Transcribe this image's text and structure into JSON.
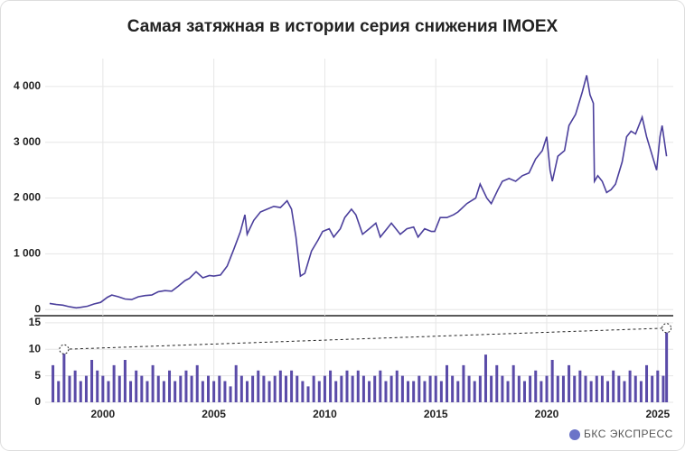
{
  "chart_data": [
    {
      "type": "line",
      "title": "Самая затяжная в истории серия снижения IMOEX",
      "color": "#4b3f9c",
      "grid": true,
      "xlim": [
        1997.4,
        2025.7
      ],
      "xticks": [
        2000,
        2005,
        2010,
        2015,
        2020,
        2025
      ],
      "ylim": [
        -110,
        4500
      ],
      "yticks": [
        0,
        {
          "value": 1000,
          "label": "1 000"
        },
        {
          "value": 2000,
          "label": "2 000"
        },
        {
          "value": 3000,
          "label": "3 000"
        },
        {
          "value": 4000,
          "label": "4 000"
        }
      ],
      "x": [
        1997.6,
        1997.9,
        1998.2,
        1998.5,
        1998.8,
        1999.0,
        1999.3,
        1999.6,
        1999.9,
        2000.2,
        2000.4,
        2000.7,
        2001.0,
        2001.3,
        2001.6,
        2001.9,
        2002.2,
        2002.5,
        2002.8,
        2003.1,
        2003.4,
        2003.7,
        2003.9,
        2004.2,
        2004.5,
        2004.8,
        2005.0,
        2005.3,
        2005.6,
        2005.9,
        2006.2,
        2006.4,
        2006.5,
        2006.8,
        2007.1,
        2007.4,
        2007.7,
        2008.0,
        2008.3,
        2008.5,
        2008.7,
        2008.9,
        2009.1,
        2009.4,
        2009.7,
        2009.9,
        2010.2,
        2010.4,
        2010.7,
        2010.9,
        2011.2,
        2011.4,
        2011.7,
        2012.0,
        2012.3,
        2012.5,
        2012.8,
        2013.0,
        2013.4,
        2013.7,
        2014.0,
        2014.2,
        2014.5,
        2014.8,
        2014.95,
        2015.2,
        2015.5,
        2015.8,
        2016.0,
        2016.4,
        2016.8,
        2017.0,
        2017.3,
        2017.5,
        2017.8,
        2018.0,
        2018.3,
        2018.6,
        2018.9,
        2019.2,
        2019.5,
        2019.8,
        2020.0,
        2020.15,
        2020.25,
        2020.5,
        2020.8,
        2021.0,
        2021.3,
        2021.6,
        2021.8,
        2021.95,
        2022.1,
        2022.15,
        2022.3,
        2022.5,
        2022.7,
        2022.9,
        2023.1,
        2023.4,
        2023.6,
        2023.8,
        2024.0,
        2024.3,
        2024.5,
        2024.8,
        2024.95,
        2025.1,
        2025.2,
        2025.4
      ],
      "values": [
        110,
        90,
        80,
        50,
        30,
        40,
        60,
        100,
        130,
        220,
        260,
        230,
        190,
        180,
        230,
        250,
        260,
        320,
        340,
        330,
        420,
        520,
        560,
        680,
        570,
        610,
        600,
        620,
        780,
        1080,
        1400,
        1700,
        1350,
        1600,
        1750,
        1800,
        1850,
        1830,
        1950,
        1800,
        1300,
        600,
        650,
        1050,
        1250,
        1400,
        1450,
        1300,
        1450,
        1650,
        1800,
        1700,
        1350,
        1450,
        1550,
        1300,
        1450,
        1550,
        1350,
        1450,
        1480,
        1300,
        1450,
        1400,
        1400,
        1650,
        1650,
        1700,
        1750,
        1900,
        2000,
        2250,
        2000,
        1900,
        2150,
        2300,
        2350,
        2300,
        2400,
        2450,
        2700,
        2850,
        3100,
        2500,
        2300,
        2750,
        2850,
        3300,
        3500,
        3900,
        4200,
        3850,
        3700,
        2300,
        2400,
        2300,
        2100,
        2150,
        2250,
        2650,
        3100,
        3200,
        3150,
        3450,
        3100,
        2700,
        2500,
        3100,
        3300,
        2750
      ]
    },
    {
      "type": "bar",
      "color": "#5a4ba8",
      "grid": true,
      "xlim": [
        1997.4,
        2025.7
      ],
      "xticks": [
        2000,
        2005,
        2010,
        2015,
        2020,
        2025
      ],
      "ylim": [
        0,
        16
      ],
      "yticks": [
        0,
        5,
        10,
        15
      ],
      "x": [
        1997.75,
        1998,
        1998.25,
        1998.5,
        1998.75,
        1999,
        1999.25,
        1999.5,
        1999.75,
        2000,
        2000.25,
        2000.5,
        2000.75,
        2001,
        2001.25,
        2001.5,
        2001.75,
        2002,
        2002.25,
        2002.5,
        2002.75,
        2003,
        2003.25,
        2003.5,
        2003.75,
        2004,
        2004.25,
        2004.5,
        2004.75,
        2005,
        2005.25,
        2005.5,
        2005.75,
        2006,
        2006.25,
        2006.5,
        2006.75,
        2007,
        2007.25,
        2007.5,
        2007.75,
        2008,
        2008.25,
        2008.5,
        2008.75,
        2009,
        2009.25,
        2009.5,
        2009.75,
        2010,
        2010.25,
        2010.5,
        2010.75,
        2011,
        2011.25,
        2011.5,
        2011.75,
        2012,
        2012.25,
        2012.5,
        2012.75,
        2013,
        2013.25,
        2013.5,
        2013.75,
        2014,
        2014.25,
        2014.5,
        2014.75,
        2015,
        2015.25,
        2015.5,
        2015.75,
        2016,
        2016.25,
        2016.5,
        2016.75,
        2017,
        2017.25,
        2017.5,
        2017.75,
        2018,
        2018.25,
        2018.5,
        2018.75,
        2019,
        2019.25,
        2019.5,
        2019.75,
        2020,
        2020.25,
        2020.5,
        2020.75,
        2021,
        2021.25,
        2021.5,
        2021.75,
        2022,
        2022.25,
        2022.5,
        2022.75,
        2023,
        2023.25,
        2023.5,
        2023.75,
        2024,
        2024.25,
        2024.5,
        2024.75,
        2025,
        2025.25,
        2025.4
      ],
      "values": [
        7,
        4,
        10,
        5,
        6,
        4,
        5,
        8,
        6,
        5,
        4,
        7,
        5,
        8,
        4,
        6,
        5,
        4,
        7,
        5,
        4,
        6,
        4,
        5,
        6,
        5,
        7,
        4,
        5,
        4,
        5,
        4,
        3,
        7,
        5,
        4,
        5,
        6,
        5,
        4,
        5,
        6,
        5,
        6,
        5,
        4,
        3,
        5,
        4,
        5,
        6,
        4,
        5,
        6,
        5,
        6,
        5,
        4,
        5,
        6,
        4,
        5,
        6,
        5,
        4,
        4,
        5,
        4,
        5,
        5,
        4,
        7,
        5,
        4,
        7,
        5,
        4,
        5,
        9,
        5,
        7,
        5,
        4,
        7,
        5,
        4,
        5,
        6,
        4,
        5,
        8,
        5,
        5,
        7,
        5,
        6,
        5,
        4,
        5,
        5,
        4,
        6,
        5,
        4,
        6,
        5,
        4,
        7,
        5,
        6,
        5,
        14
      ]
    }
  ],
  "logo": "БКС ЭКСПРЕСС"
}
